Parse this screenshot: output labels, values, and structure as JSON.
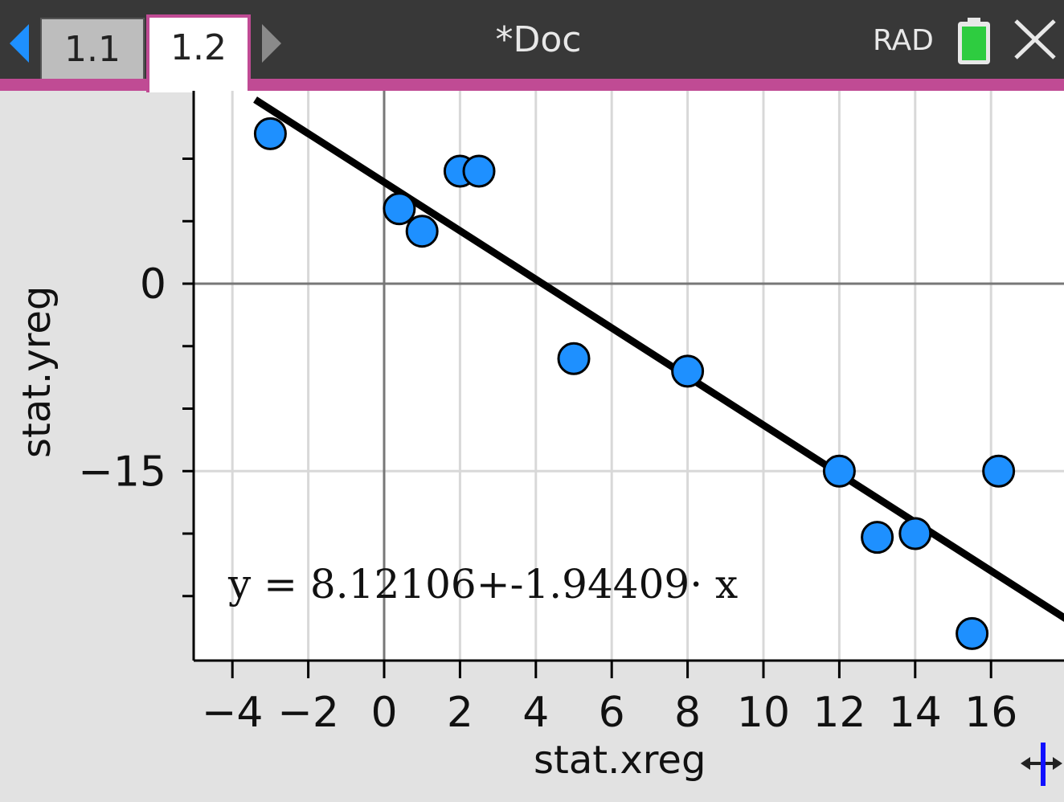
{
  "header": {
    "tabs": [
      {
        "label": "1.1",
        "active": false
      },
      {
        "label": "1.2",
        "active": true
      }
    ],
    "doc_title": "*Doc",
    "angle_mode": "RAD",
    "icons": [
      "nav-left-arrow-icon",
      "nav-right-arrow-icon",
      "battery-icon",
      "close-icon"
    ]
  },
  "colors": {
    "accent": "#c04b94",
    "point_fill": "#1e90ff",
    "battery_green": "#2ecc40"
  },
  "graph": {
    "equation": "y = 8.12106+-1.94409· x",
    "xlabel": "stat.xreg",
    "ylabel": "stat.yreg"
  },
  "chart_data": {
    "type": "scatter",
    "xlabel": "stat.xreg",
    "ylabel": "stat.yreg",
    "xlim": [
      -5,
      18
    ],
    "ylim": [
      -30,
      15
    ],
    "x_ticks": [
      -4,
      -2,
      0,
      2,
      4,
      6,
      8,
      10,
      12,
      14,
      16
    ],
    "y_ticks_labeled": [
      0,
      -15
    ],
    "grid": true,
    "points": [
      {
        "x": -3,
        "y": 12
      },
      {
        "x": 0.4,
        "y": 6
      },
      {
        "x": 1,
        "y": 4.2
      },
      {
        "x": 2,
        "y": 9
      },
      {
        "x": 2.5,
        "y": 9
      },
      {
        "x": 5,
        "y": -6
      },
      {
        "x": 8,
        "y": -7
      },
      {
        "x": 12,
        "y": -15
      },
      {
        "x": 13,
        "y": -20.3
      },
      {
        "x": 14,
        "y": -20
      },
      {
        "x": 15.5,
        "y": -28
      },
      {
        "x": 16.2,
        "y": -15
      }
    ],
    "regression": {
      "intercept": 8.12106,
      "slope": -1.94409
    }
  }
}
